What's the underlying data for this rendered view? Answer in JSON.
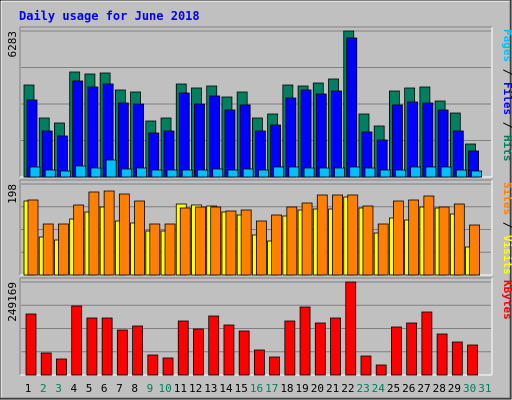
{
  "chart_data": {
    "type": "bar",
    "title": "Daily usage for June 2018",
    "x": {
      "labels": [
        "1",
        "2",
        "3",
        "4",
        "5",
        "6",
        "7",
        "8",
        "9",
        "10",
        "11",
        "12",
        "13",
        "14",
        "15",
        "16",
        "17",
        "18",
        "19",
        "20",
        "21",
        "22",
        "23",
        "24",
        "25",
        "26",
        "27",
        "28",
        "29",
        "30",
        "31"
      ],
      "weekend_days": [
        2,
        3,
        9,
        10,
        16,
        17,
        23,
        24,
        30,
        31
      ]
    },
    "panels": [
      {
        "key": "top",
        "ymax_label": "6283",
        "ymax": 6283,
        "right_label": [
          {
            "text": "Pages",
            "color": "#00c0ff"
          },
          {
            "text": " / ",
            "color": "#000000"
          },
          {
            "text": "Files",
            "color": "#0000ff"
          },
          {
            "text": " / ",
            "color": "#000000"
          },
          {
            "text": "Hits",
            "color": "#00805c"
          }
        ],
        "series": [
          {
            "name": "Hits",
            "color": "#008060",
            "values": [
              3980,
              2520,
              2330,
              4500,
              4450,
              4480,
              3750,
              3640,
              2400,
              2520,
              4010,
              3820,
              3920,
              3450,
              3650,
              2550,
              2700,
              3940,
              3900,
              4040,
              4220,
              6283,
              2700,
              2180,
              3710,
              3830,
              3860,
              3280,
              2740,
              1440
            ]
          },
          {
            "name": "Files",
            "color": "#0000ff",
            "values": [
              3330,
              2000,
              1780,
              4120,
              3890,
              4010,
              3190,
              3160,
              1890,
              1970,
              3610,
              3150,
              3500,
              2890,
              3100,
              1970,
              2220,
              3380,
              3740,
              3580,
              3700,
              5980,
              1950,
              1610,
              3100,
              3220,
              3190,
              2880,
              1980,
              1130
            ]
          },
          {
            "name": "Pages",
            "color": "#00c0ff",
            "values": [
              420,
              280,
              240,
              460,
              400,
              730,
              330,
              390,
              280,
              320,
              320,
              310,
              330,
              320,
              350,
              290,
              450,
              420,
              370,
              380,
              380,
              420,
              390,
              310,
              300,
              410,
              420,
              430,
              320,
              260
            ]
          }
        ]
      },
      {
        "key": "middle",
        "ymax_label": "198",
        "ymax": 198,
        "right_label": [
          {
            "text": "Sites",
            "color": "#ff8000"
          },
          {
            "text": " / ",
            "color": "#000000"
          },
          {
            "text": "Visits",
            "color": "#ffff00"
          }
        ],
        "series": [
          {
            "name": "Visits",
            "color": "#ffff00",
            "values": [
              160,
              82,
              77,
              121,
              137,
              147,
              117,
              114,
              96,
              95,
              155,
              153,
              151,
              136,
              130,
              87,
              73,
              128,
              142,
              144,
              143,
              170,
              146,
              92,
              125,
              120,
              147,
              146,
              133,
              62
            ]
          },
          {
            "name": "Sites",
            "color": "#ff8000",
            "values": [
              164,
              112,
              112,
              152,
              180,
              183,
              176,
              160,
              112,
              111,
              145,
              148,
              148,
              140,
              141,
              118,
              131,
              148,
              156,
              173,
              175,
              173,
              150,
              110,
              160,
              163,
              172,
              147,
              154,
              109
            ]
          }
        ]
      },
      {
        "key": "bottom",
        "ymax_label": "249169",
        "ymax": 249169,
        "right_label": [
          {
            "text": "KBytes",
            "color": "#ff0000"
          }
        ],
        "series": [
          {
            "name": "KBytes",
            "color": "#ff0000",
            "values": [
              164600,
              58600,
              44200,
              184800,
              154000,
              152000,
              119500,
              131500,
              53700,
              46800,
              144600,
              122300,
              157700,
              132700,
              119000,
              65700,
              49200,
              143900,
              181800,
              140200,
              152600,
              249169,
              51100,
              27900,
              128500,
              139200,
              168200,
              110800,
              89600,
              81000
            ]
          }
        ]
      }
    ]
  }
}
